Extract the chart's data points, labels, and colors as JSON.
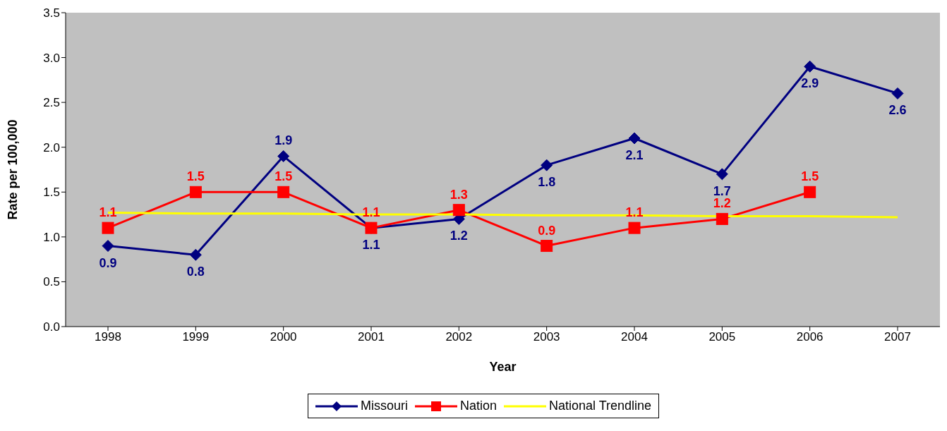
{
  "chart_data": {
    "type": "line",
    "xlabel": "Year",
    "ylabel": "Rate per 100,000",
    "categories": [
      "1998",
      "1999",
      "2000",
      "2001",
      "2002",
      "2003",
      "2004",
      "2005",
      "2006",
      "2007"
    ],
    "series": [
      {
        "name": "Missouri",
        "color": "#000080",
        "marker": "diamond",
        "values": [
          0.9,
          0.8,
          1.9,
          1.1,
          1.2,
          1.8,
          2.1,
          1.7,
          2.9,
          2.6
        ],
        "value_labels": [
          "0.9",
          "0.8",
          "1.9",
          "1.1",
          "1.2",
          "1.8",
          "2.1",
          "1.7",
          "2.9",
          "2.6"
        ]
      },
      {
        "name": "Nation",
        "color": "#ff0000",
        "marker": "square",
        "values": [
          1.1,
          1.5,
          1.5,
          1.1,
          1.3,
          0.9,
          1.1,
          1.2,
          1.5,
          null
        ],
        "value_labels": [
          "1.1",
          "1.5",
          "1.5",
          "1.1",
          "1.3",
          "0.9",
          "1.1",
          "1.2",
          "1.5",
          null
        ]
      },
      {
        "name": "National Trendline",
        "color": "#ffff00",
        "marker": "none",
        "values": [
          1.27,
          1.26,
          1.26,
          1.25,
          1.25,
          1.24,
          1.24,
          1.23,
          1.23,
          1.22
        ]
      }
    ],
    "ylim": [
      0,
      3.5
    ],
    "yticks": [
      {
        "value": 0,
        "label": "0.0"
      },
      {
        "value": 0.5,
        "label": "0.5"
      },
      {
        "value": 1,
        "label": "1.0"
      },
      {
        "value": 1.5,
        "label": "1.5"
      },
      {
        "value": 2,
        "label": "2.0"
      },
      {
        "value": 2.5,
        "label": "2.5"
      },
      {
        "value": 3,
        "label": "3.0"
      },
      {
        "value": 3.5,
        "label": "3.5"
      }
    ],
    "grid": false,
    "legend": "bottom"
  }
}
